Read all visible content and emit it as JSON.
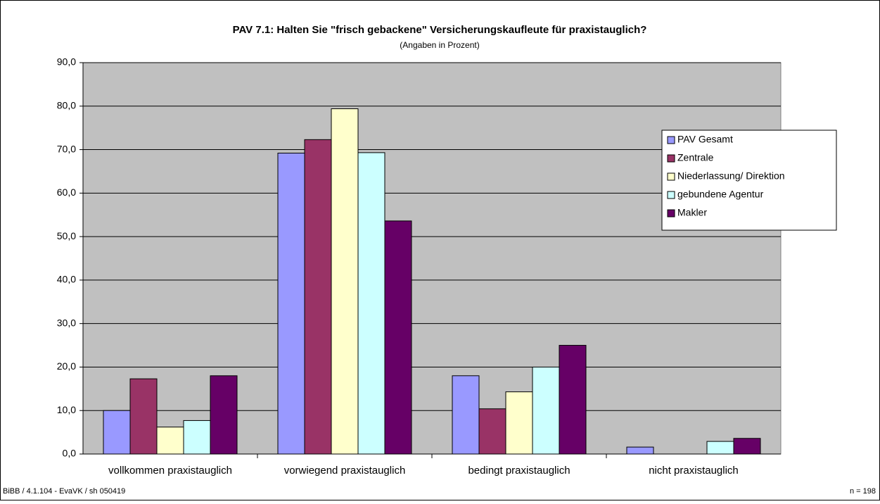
{
  "chart_data": {
    "type": "bar",
    "title": "PAV 7.1: Halten Sie \"frisch gebackene\" Versicherungskaufleute für praxistauglich?",
    "subtitle": "(Angaben in Prozent)",
    "categories": [
      "vollkommen praxistauglich",
      "vorwiegend praxistauglich",
      "bedingt praxistauglich",
      "nicht praxistauglich"
    ],
    "series": [
      {
        "name": "PAV Gesamt",
        "color": "#9999ff",
        "values": [
          10.0,
          69.2,
          18.0,
          1.6
        ]
      },
      {
        "name": "Zentrale",
        "color": "#993366",
        "values": [
          17.3,
          72.3,
          10.4,
          0
        ]
      },
      {
        "name": "Niederlassung/ Direktion",
        "color": "#ffffcc",
        "values": [
          6.2,
          79.4,
          14.3,
          0
        ]
      },
      {
        "name": "gebundene Agentur",
        "color": "#ccffff",
        "values": [
          7.7,
          69.3,
          20.0,
          2.9
        ]
      },
      {
        "name": "Makler",
        "color": "#660066",
        "values": [
          18.0,
          53.6,
          25.0,
          3.6
        ]
      }
    ],
    "ylim": [
      0,
      90
    ],
    "yticks": [
      {
        "value": 0,
        "label": "0,0"
      },
      {
        "value": 10,
        "label": "10,0"
      },
      {
        "value": 20,
        "label": "20,0"
      },
      {
        "value": 30,
        "label": "30,0"
      },
      {
        "value": 40,
        "label": "40,0"
      },
      {
        "value": 50,
        "label": "50,0"
      },
      {
        "value": 60,
        "label": "60,0"
      },
      {
        "value": 70,
        "label": "70,0"
      },
      {
        "value": 80,
        "label": "80,0"
      },
      {
        "value": 90,
        "label": "90,0"
      }
    ],
    "grid": true,
    "legend": "right",
    "footer_left": "BiBB / 4.1.104 - EvaVK / sh 050419",
    "footer_right": "n = 198"
  }
}
